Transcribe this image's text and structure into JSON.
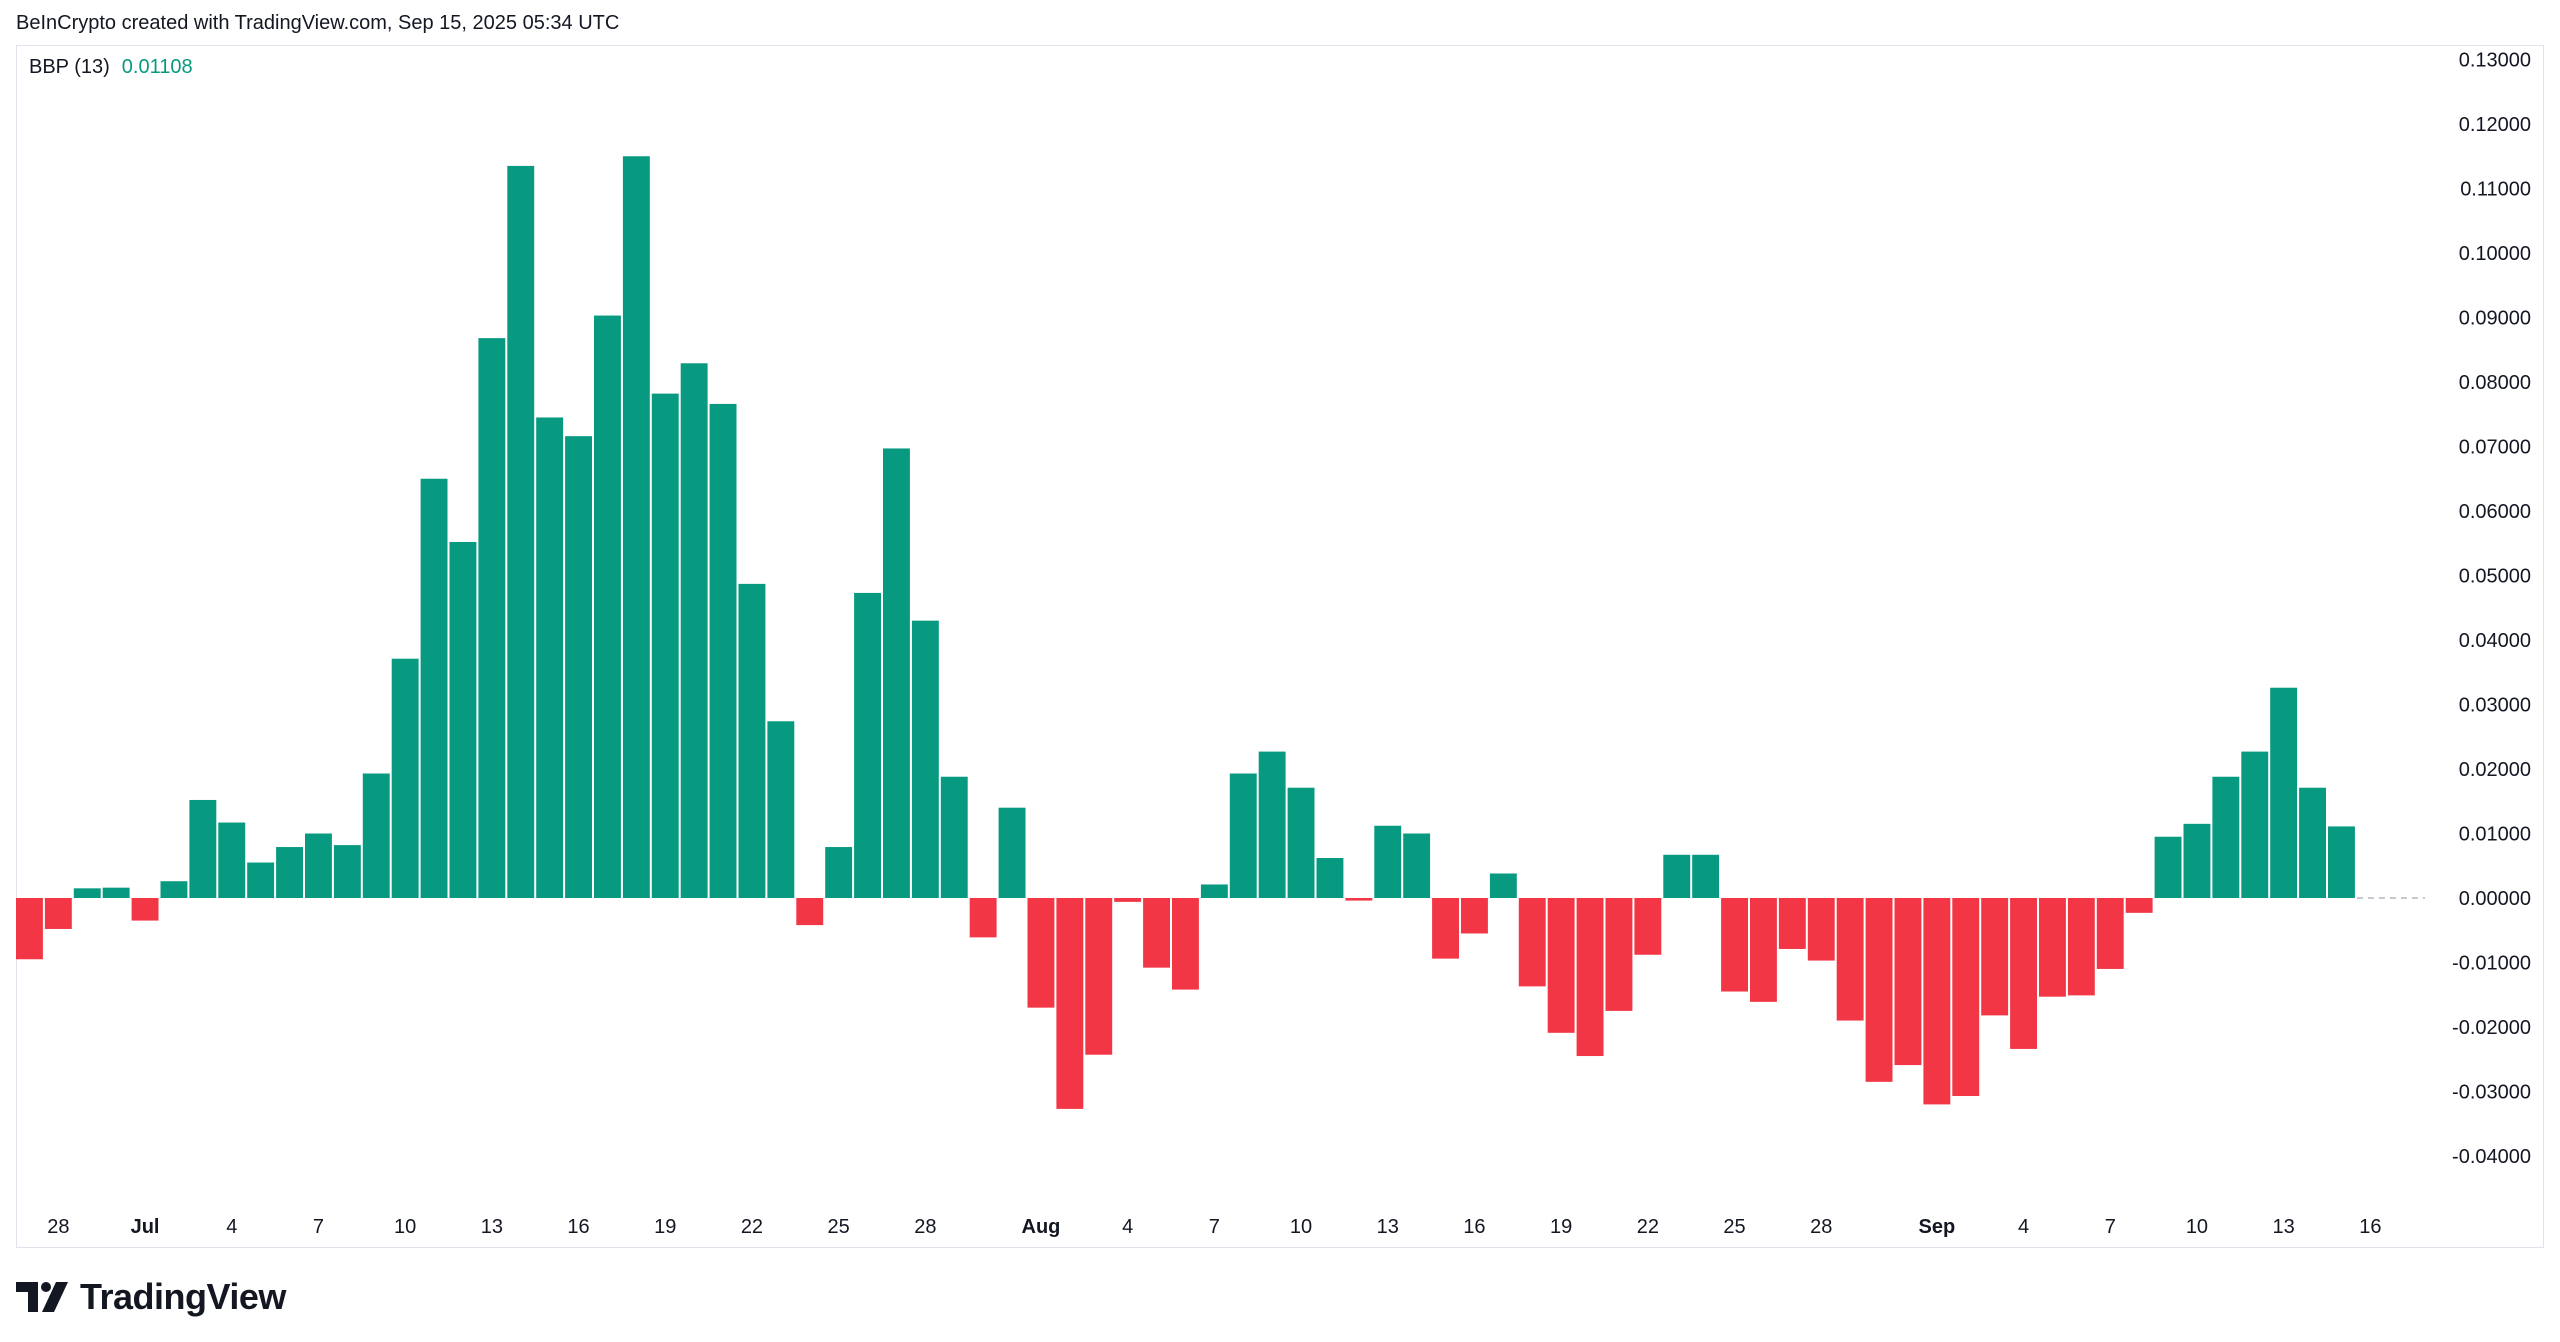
{
  "header": {
    "credit": "BeInCrypto created with TradingView.com, Sep 15, 2025 05:34 UTC"
  },
  "legend": {
    "name": "BBP (13)",
    "value": "0.01108"
  },
  "footer": {
    "brand": "TradingView"
  },
  "colors": {
    "positive": "#089981",
    "negative": "#f23645",
    "axis_text": "#131722",
    "zero_line": "#b2b5be"
  },
  "chart_data": {
    "type": "bar",
    "title": "BBP (13)",
    "ylim": [
      -0.045,
      0.13
    ],
    "y_ticks": [
      "0.13000",
      "0.12000",
      "0.11000",
      "0.10000",
      "0.09000",
      "0.08000",
      "0.07000",
      "0.06000",
      "0.05000",
      "0.04000",
      "0.03000",
      "0.02000",
      "0.01000",
      "0.00000",
      "-0.01000",
      "-0.02000",
      "-0.03000",
      "-0.04000"
    ],
    "x_ticks": [
      {
        "label": "28",
        "bar": 1,
        "bold": false
      },
      {
        "label": "Jul",
        "bar": 4,
        "bold": true
      },
      {
        "label": "4",
        "bar": 7,
        "bold": false
      },
      {
        "label": "7",
        "bar": 10,
        "bold": false
      },
      {
        "label": "10",
        "bar": 13,
        "bold": false
      },
      {
        "label": "13",
        "bar": 16,
        "bold": false
      },
      {
        "label": "16",
        "bar": 19,
        "bold": false
      },
      {
        "label": "19",
        "bar": 22,
        "bold": false
      },
      {
        "label": "22",
        "bar": 25,
        "bold": false
      },
      {
        "label": "25",
        "bar": 28,
        "bold": false
      },
      {
        "label": "28",
        "bar": 31,
        "bold": false
      },
      {
        "label": "Aug",
        "bar": 35,
        "bold": true
      },
      {
        "label": "4",
        "bar": 38,
        "bold": false
      },
      {
        "label": "7",
        "bar": 41,
        "bold": false
      },
      {
        "label": "10",
        "bar": 44,
        "bold": false
      },
      {
        "label": "13",
        "bar": 47,
        "bold": false
      },
      {
        "label": "16",
        "bar": 50,
        "bold": false
      },
      {
        "label": "19",
        "bar": 53,
        "bold": false
      },
      {
        "label": "22",
        "bar": 56,
        "bold": false
      },
      {
        "label": "25",
        "bar": 59,
        "bold": false
      },
      {
        "label": "28",
        "bar": 62,
        "bold": false
      },
      {
        "label": "Sep",
        "bar": 66,
        "bold": true
      },
      {
        "label": "4",
        "bar": 69,
        "bold": false
      },
      {
        "label": "7",
        "bar": 72,
        "bold": false
      },
      {
        "label": "10",
        "bar": 75,
        "bold": false
      },
      {
        "label": "13",
        "bar": 78,
        "bold": false
      },
      {
        "label": "16",
        "bar": 81,
        "bold": false
      }
    ],
    "values": [
      -0.0095,
      -0.0048,
      0.0015,
      0.0016,
      -0.0035,
      0.0026,
      0.0152,
      0.0117,
      0.0055,
      0.0079,
      0.01,
      0.0082,
      0.0193,
      0.0371,
      0.065,
      0.0552,
      0.0868,
      0.1135,
      0.0745,
      0.0716,
      0.0903,
      0.115,
      0.0782,
      0.0829,
      0.0766,
      0.0487,
      0.0274,
      -0.0042,
      0.0079,
      0.0473,
      0.0697,
      0.043,
      0.0188,
      -0.0061,
      0.014,
      -0.017,
      -0.0327,
      -0.0243,
      -0.0006,
      -0.0108,
      -0.0142,
      0.0021,
      0.0193,
      0.0227,
      0.0171,
      0.0062,
      -0.0004,
      0.0112,
      0.01,
      -0.0094,
      -0.0055,
      0.0038,
      -0.0137,
      -0.0209,
      -0.0245,
      -0.0175,
      -0.0088,
      0.0067,
      0.0067,
      -0.0145,
      -0.0161,
      -0.0079,
      -0.0097,
      -0.019,
      -0.0285,
      -0.0259,
      -0.032,
      -0.0307,
      -0.0182,
      -0.0234,
      -0.0153,
      -0.0151,
      -0.011,
      -0.0023,
      0.0095,
      0.0115,
      0.0188,
      0.0227,
      0.0326,
      0.0171,
      0.0111
    ]
  }
}
